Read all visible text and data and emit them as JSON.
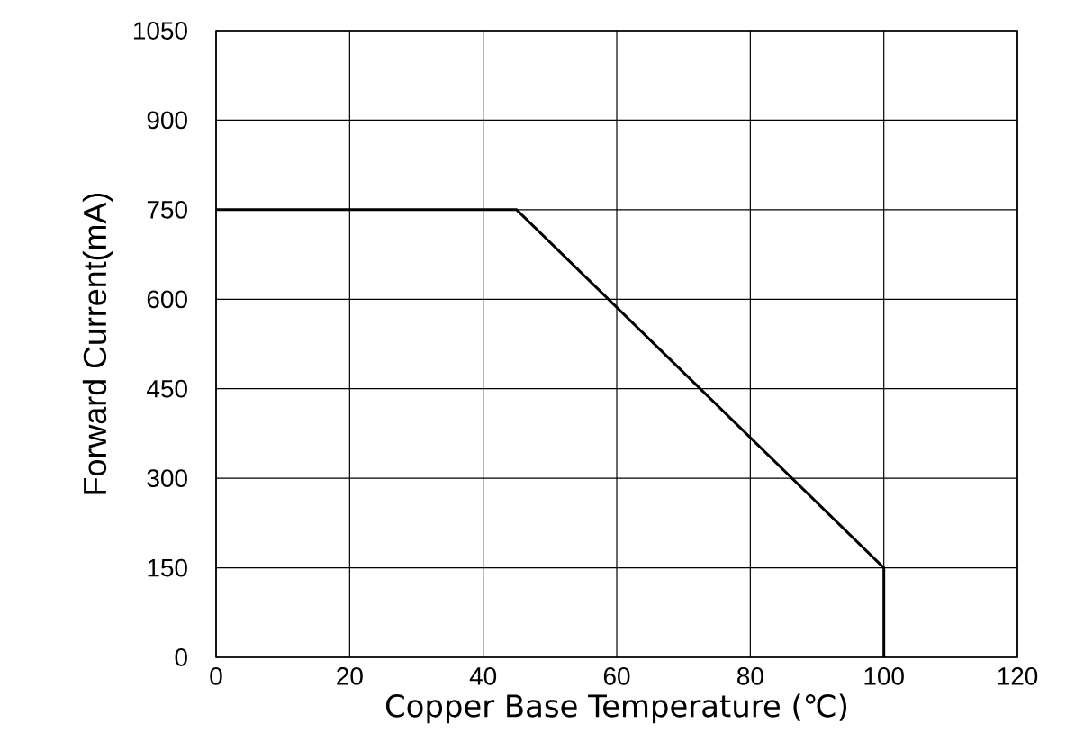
{
  "chart_data": {
    "type": "line",
    "xlabel": "Copper Base Temperature (℃)",
    "ylabel": "Forward Current(mA)",
    "x": [
      0,
      45,
      100,
      100
    ],
    "values": [
      750,
      750,
      150,
      0
    ],
    "color": "#000000",
    "xlim": [
      0,
      120
    ],
    "ylim": [
      0,
      1050
    ],
    "xticks": [
      0,
      20,
      40,
      60,
      80,
      100,
      120
    ],
    "yticks": [
      0,
      150,
      300,
      450,
      600,
      750,
      900,
      1050
    ],
    "grid": true
  }
}
